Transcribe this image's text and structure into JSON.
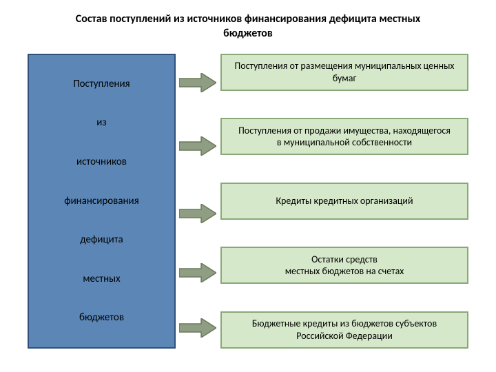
{
  "title": "Состав поступлений из источников финансирования дефицита местных бюджетов",
  "title_fontsize": 16,
  "background_color": "#ffffff",
  "left_box": {
    "bg_color": "#5b86b6",
    "border_color": "#2f4f7a",
    "word_fontsize": 15,
    "words": [
      "Поступления",
      "из",
      "источников",
      "финансирования",
      "дефицита",
      "местных",
      "бюджетов"
    ]
  },
  "right_boxes": {
    "bg_color": "#d5e8c9",
    "border_color": "#8aa877",
    "fontsize": 14,
    "items": [
      "Поступления от размещения муниципальных ценных бумаг",
      "Поступления от продажи имущества, находящегося\nв муниципальной собственности",
      "Кредиты кредитных организаций",
      "Остатки средств\nместных бюджетов на счетах",
      "Бюджетные кредиты из бюджетов субъектов Российской Федерации"
    ]
  },
  "arrows": {
    "fill_color": "#8f9d82",
    "stroke_color": "#6a7a5c",
    "count": 5,
    "tops": [
      28,
      120,
      218,
      304,
      384
    ]
  }
}
